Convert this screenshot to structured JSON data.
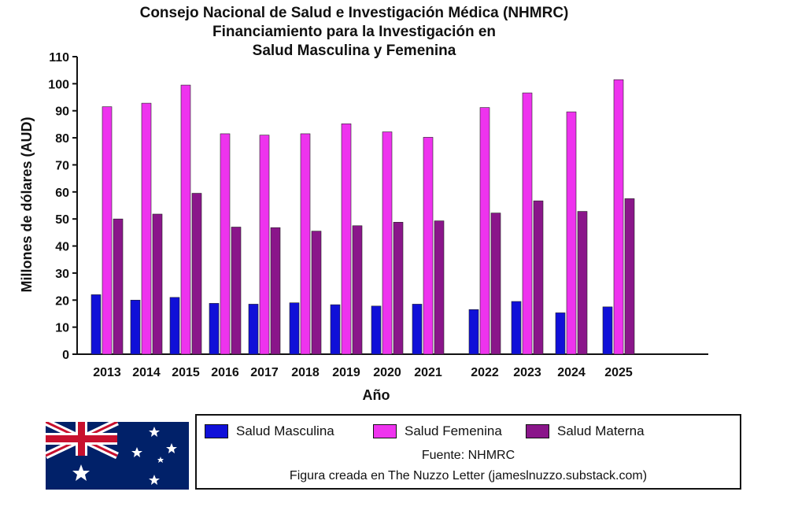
{
  "chart_data": {
    "type": "bar",
    "title_lines": [
      "Consejo Nacional de Salud e Investigación Médica (NHMRC)",
      "Financiamiento para la Investigación en",
      "Salud Masculina y Femenina"
    ],
    "xlabel": "Año",
    "ylabel": "Millones de dólares (AUD)",
    "ylim": [
      0,
      110
    ],
    "yticks": [
      0,
      10,
      20,
      30,
      40,
      50,
      60,
      70,
      80,
      90,
      100,
      110
    ],
    "categories": [
      "2013",
      "2014",
      "2015",
      "2016",
      "2017",
      "2018",
      "2019",
      "2020",
      "2021",
      "2022",
      "2023",
      "2024",
      "2025"
    ],
    "series": [
      {
        "name": "Salud Masculina",
        "color": "#1010d8",
        "values": [
          22,
          20,
          21,
          18.8,
          18.5,
          19,
          18.3,
          17.8,
          18.5,
          16.5,
          19.5,
          15.3,
          17.5
        ]
      },
      {
        "name": "Salud Femenina",
        "color": "#ee33ee",
        "values": [
          91.5,
          92.8,
          99.5,
          81.5,
          81,
          81.5,
          85.2,
          82.2,
          80.2,
          91.2,
          96.6,
          89.6,
          101.5
        ]
      },
      {
        "name": "Salud Materna",
        "color": "#8a168a",
        "values": [
          50,
          51.8,
          59.5,
          47,
          46.8,
          45.5,
          47.5,
          48.8,
          49.3,
          52.2,
          56.7,
          52.8,
          57.5
        ]
      }
    ],
    "grid": false,
    "legend_position": "bottom"
  },
  "source_label": "Fuente: NHMRC",
  "credit_label": "Figura creada en The Nuzzo Letter (jameslnuzzo.substack.com)",
  "flag_name": "australia-flag"
}
